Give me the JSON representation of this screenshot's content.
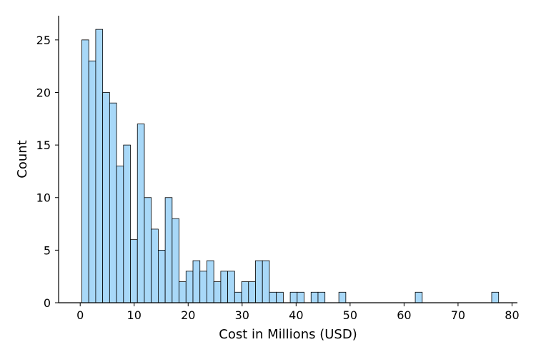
{
  "chart_data": {
    "type": "bar",
    "title": "",
    "xlabel": "Cost in Millions (USD)",
    "ylabel": "Count",
    "xlim": [
      -4,
      81
    ],
    "ylim": [
      0,
      27.3
    ],
    "xticks": [
      0,
      10,
      20,
      30,
      40,
      50,
      60,
      70,
      80
    ],
    "yticks": [
      0,
      5,
      10,
      15,
      20,
      25
    ],
    "bin_start": 0.3,
    "bin_width": 1.287,
    "counts": [
      25,
      23,
      26,
      20,
      19,
      13,
      15,
      6,
      17,
      10,
      7,
      5,
      10,
      8,
      2,
      3,
      4,
      3,
      4,
      2,
      3,
      3,
      1,
      2,
      2,
      4,
      4,
      1,
      1,
      0,
      1,
      1,
      0,
      1,
      1,
      0,
      0,
      1,
      0,
      0,
      0,
      0,
      0,
      0,
      0,
      0,
      0,
      0,
      1,
      0,
      0,
      0,
      0,
      0,
      0,
      0,
      0,
      0,
      0,
      1
    ],
    "bar_color": "#a8d8f8",
    "edge_color": "#000000",
    "grid": false
  }
}
